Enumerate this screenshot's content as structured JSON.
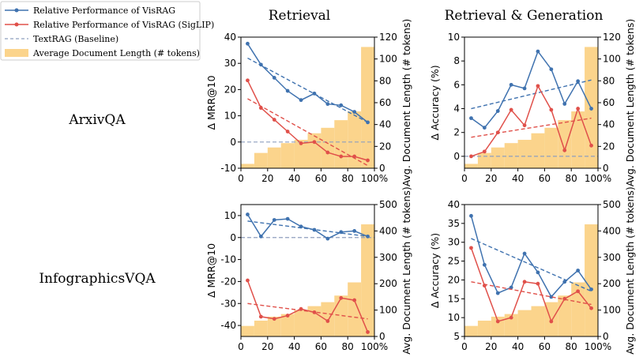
{
  "figure": {
    "column_titles": [
      "Retrieval",
      "Retrieval & Generation"
    ],
    "row_labels": [
      "ArxivQA",
      "InfographicsVQA"
    ]
  },
  "legend": [
    {
      "label": "Relative Performance of VisRAG",
      "kind": "line-marker",
      "color": "#3f72af"
    },
    {
      "label": "Relative Performance of VisRAG (SigLIP)",
      "kind": "line-marker",
      "color": "#e0504a"
    },
    {
      "label": "TextRAG (Baseline)",
      "kind": "dashed",
      "color": "#8e9fbf"
    },
    {
      "label": "Average Document Length (# tokens)",
      "kind": "patch",
      "color": "#fbd48c"
    }
  ],
  "colors": {
    "visrag": "#3f72af",
    "siglip": "#e0504a",
    "baseline": "#8e9fbf",
    "bars": "#fbd48c"
  },
  "chart_data": [
    {
      "type": "bar+line",
      "row": "ArxivQA",
      "column": "Retrieval",
      "xlabel": "",
      "ylabel": "Δ MRR@10",
      "y2label": "Avg. Document Length (# tokens)",
      "ylim": [
        -10,
        40
      ],
      "yticks": [
        -10,
        0,
        10,
        20,
        30,
        40
      ],
      "y2lim": [
        0,
        120
      ],
      "y2ticks": [
        0,
        20,
        40,
        60,
        80,
        100,
        120
      ],
      "xlim": [
        0,
        100
      ],
      "xticks": [
        0,
        20,
        40,
        60,
        80,
        100
      ],
      "xticklabels": [
        "0",
        "20",
        "40",
        "60",
        "80",
        "100%"
      ],
      "x": [
        5,
        15,
        25,
        35,
        45,
        55,
        65,
        75,
        85,
        95
      ],
      "bars": [
        4,
        14,
        19,
        23,
        26,
        32,
        37,
        44,
        52,
        111
      ],
      "series": [
        {
          "name": "Relative Performance of VisRAG",
          "values": [
            37.5,
            29.5,
            24.5,
            19.5,
            16.0,
            18.5,
            14.5,
            14.0,
            11.5,
            7.5
          ],
          "trend": [
            32.0,
            7.5
          ]
        },
        {
          "name": "Relative Performance of VisRAG (SigLIP)",
          "values": [
            23.5,
            13.0,
            8.5,
            4.0,
            -0.5,
            0.0,
            -4.0,
            -5.5,
            -5.5,
            -7.0
          ],
          "trend": [
            16.5,
            -9.0
          ]
        }
      ],
      "baseline": 0
    },
    {
      "type": "bar+line",
      "row": "ArxivQA",
      "column": "Retrieval & Generation",
      "xlabel": "",
      "ylabel": "Δ Accuracy (%)",
      "y2label": "Avg. Document Length (# tokens)",
      "ylim": [
        -1,
        10
      ],
      "yticks": [
        0,
        2,
        4,
        6,
        8,
        10
      ],
      "y2lim": [
        0,
        120
      ],
      "y2ticks": [
        0,
        20,
        40,
        60,
        80,
        100,
        120
      ],
      "xlim": [
        0,
        100
      ],
      "xticks": [
        0,
        20,
        40,
        60,
        80,
        100
      ],
      "xticklabels": [
        "0",
        "20",
        "40",
        "60",
        "80",
        "100%"
      ],
      "x": [
        5,
        15,
        25,
        35,
        45,
        55,
        65,
        75,
        85,
        95
      ],
      "bars": [
        4,
        14,
        19,
        23,
        26,
        32,
        37,
        44,
        52,
        111
      ],
      "series": [
        {
          "name": "Relative Performance of VisRAG",
          "values": [
            3.2,
            2.4,
            3.8,
            6.0,
            5.7,
            8.8,
            7.3,
            4.4,
            6.3,
            4.0
          ],
          "trend": [
            4.0,
            6.4
          ]
        },
        {
          "name": "Relative Performance of VisRAG (SigLIP)",
          "values": [
            0.0,
            0.4,
            2.0,
            3.9,
            2.6,
            5.9,
            3.9,
            0.5,
            4.0,
            0.9
          ],
          "trend": [
            1.6,
            3.2
          ]
        }
      ],
      "baseline": 0
    },
    {
      "type": "bar+line",
      "row": "InfographicsVQA",
      "column": "Retrieval",
      "xlabel": "",
      "ylabel": "Δ MRR@10",
      "y2label": "Avg. Document Length (# tokens)",
      "ylim": [
        -45,
        15
      ],
      "yticks": [
        -40,
        -30,
        -20,
        -10,
        0,
        10
      ],
      "y2lim": [
        0,
        500
      ],
      "y2ticks": [
        0,
        100,
        200,
        300,
        400,
        500
      ],
      "xlim": [
        0,
        100
      ],
      "xticks": [
        0,
        20,
        40,
        60,
        80,
        100
      ],
      "xticklabels": [
        "0",
        "20",
        "40",
        "60",
        "80",
        "100%"
      ],
      "x": [
        5,
        15,
        25,
        35,
        45,
        55,
        65,
        75,
        85,
        95
      ],
      "bars": [
        40,
        60,
        75,
        85,
        100,
        115,
        130,
        155,
        205,
        425
      ],
      "series": [
        {
          "name": "Relative Performance of VisRAG",
          "values": [
            10.5,
            0.5,
            8.0,
            8.5,
            5.0,
            3.5,
            -0.5,
            2.5,
            3.0,
            0.5
          ],
          "trend": [
            7.5,
            0.5
          ]
        },
        {
          "name": "Relative Performance of VisRAG (SigLIP)",
          "values": [
            -19.5,
            -36.0,
            -37.0,
            -35.5,
            -32.5,
            -34.0,
            -38.0,
            -27.5,
            -28.5,
            -43.0
          ],
          "trend": [
            -30.0,
            -37.0
          ]
        }
      ],
      "baseline": 0
    },
    {
      "type": "bar+line",
      "row": "InfographicsVQA",
      "column": "Retrieval & Generation",
      "xlabel": "",
      "ylabel": "Δ Accuracy (%)",
      "y2label": "Avg. Document Length (# tokens)",
      "ylim": [
        5,
        40
      ],
      "yticks": [
        5,
        10,
        15,
        20,
        25,
        30,
        35,
        40
      ],
      "y2lim": [
        0,
        500
      ],
      "y2ticks": [
        0,
        100,
        200,
        300,
        400,
        500
      ],
      "xlim": [
        0,
        100
      ],
      "xticks": [
        0,
        20,
        40,
        60,
        80,
        100
      ],
      "xticklabels": [
        "0",
        "20",
        "40",
        "60",
        "80",
        "100%"
      ],
      "x": [
        5,
        15,
        25,
        35,
        45,
        55,
        65,
        75,
        85,
        95
      ],
      "bars": [
        40,
        60,
        75,
        85,
        100,
        115,
        130,
        155,
        205,
        425
      ],
      "series": [
        {
          "name": "Relative Performance of VisRAG",
          "values": [
            37.0,
            24.0,
            16.5,
            18.0,
            27.0,
            22.0,
            15.5,
            19.5,
            22.5,
            17.5
          ],
          "trend": [
            31.0,
            17.0
          ]
        },
        {
          "name": "Relative Performance of VisRAG (SigLIP)",
          "values": [
            28.5,
            18.5,
            9.0,
            10.0,
            19.5,
            19.0,
            9.0,
            15.0,
            17.0,
            12.5
          ],
          "trend": [
            19.5,
            13.5
          ]
        }
      ],
      "baseline": null
    }
  ]
}
